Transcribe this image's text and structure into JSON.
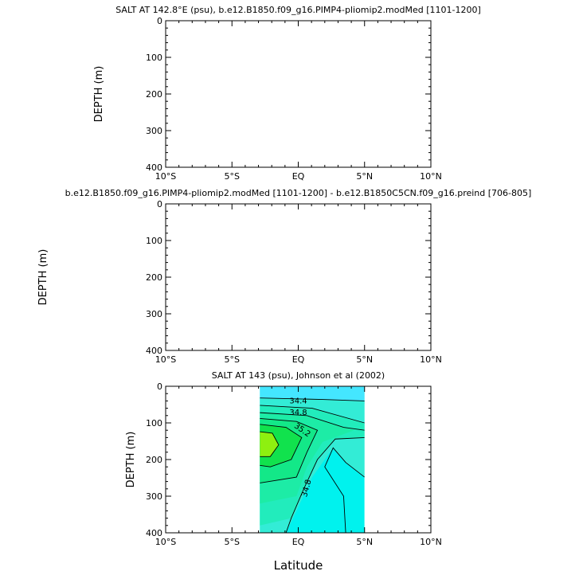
{
  "chart_data": [
    {
      "type": "heatmap",
      "title": "SALT AT 142.8°E (psu), b.e12.B1850.f09_g16.PIMP4-pliomip2.modMed [1101-1200]",
      "ylabel": "DEPTH (m)",
      "xlabel": "",
      "x_ticks": [
        "10°S",
        "5°S",
        "EQ",
        "5°N",
        "10°N"
      ],
      "y_ticks": [
        "0",
        "100",
        "200",
        "300",
        "400"
      ],
      "xlim": [
        -10,
        10
      ],
      "ylim": [
        400,
        0
      ],
      "has_data": false
    },
    {
      "type": "heatmap",
      "title": "b.e12.B1850.f09_g16.PIMP4-pliomip2.modMed [1101-1200] - b.e12.B1850C5CN.f09_g16.preind [706-805]",
      "ylabel": "DEPTH (m)",
      "xlabel": "",
      "x_ticks": [
        "10°S",
        "5°S",
        "EQ",
        "5°N",
        "10°N"
      ],
      "y_ticks": [
        "0",
        "100",
        "200",
        "300",
        "400"
      ],
      "xlim": [
        -10,
        10
      ],
      "ylim": [
        400,
        0
      ],
      "has_data": false
    },
    {
      "type": "heatmap",
      "title": "SALT AT 143 (psu), Johnson et al (2002)",
      "ylabel": "DEPTH (m)",
      "xlabel": "Latitude",
      "x_ticks": [
        "10°S",
        "5°S",
        "EQ",
        "5°N",
        "10°N"
      ],
      "y_ticks": [
        "0",
        "100",
        "200",
        "300",
        "400"
      ],
      "xlim": [
        -10,
        10
      ],
      "ylim": [
        400,
        0
      ],
      "has_data": true,
      "data_extent_lat": [
        -2.9,
        5
      ],
      "contour_labels": [
        {
          "text": "34.4",
          "lat": 0.0,
          "depth": 47
        },
        {
          "text": "34.8",
          "lat": 0.0,
          "depth": 78
        },
        {
          "text": "35.2",
          "lat": 0.2,
          "depth": 125
        },
        {
          "text": "34.8",
          "lat": 0.8,
          "depth": 280
        }
      ],
      "colors": {
        "s_low": "#44e6ff",
        "s_34_4": "#33ecd6",
        "s_34_6": "#22ecbc",
        "s_34_8": "#1deca6",
        "s_35_0": "#13e888",
        "s_35_2": "#11e24d",
        "s_35_4": "#8ef010",
        "deep": "#00f2ee"
      }
    }
  ]
}
